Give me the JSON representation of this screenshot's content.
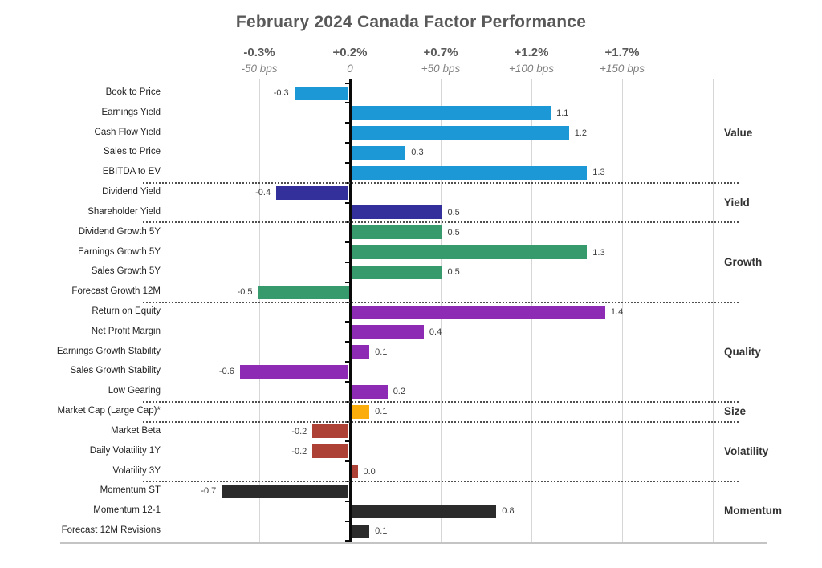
{
  "title": "February 2024 Canada Factor Performance",
  "chart_data": {
    "type": "bar",
    "orientation": "horizontal",
    "title": "February 2024 Canada Factor Performance",
    "value_range": [
      -1.0,
      2.0
    ],
    "grid": true,
    "axis_ticks": [
      {
        "value": -0.5,
        "pct_label": "-0.3%",
        "bps_label": "-50 bps"
      },
      {
        "value": 0.0,
        "pct_label": "+0.2%",
        "bps_label": "0"
      },
      {
        "value": 0.5,
        "pct_label": "+0.7%",
        "bps_label": "+50 bps"
      },
      {
        "value": 1.0,
        "pct_label": "+1.2%",
        "bps_label": "+100 bps"
      },
      {
        "value": 1.5,
        "pct_label": "+1.7%",
        "bps_label": "+150 bps"
      }
    ],
    "groups": [
      {
        "name": "Value",
        "color": "#1B98D5",
        "factors": [
          {
            "label": "Book to Price",
            "value": -0.3
          },
          {
            "label": "Earnings Yield",
            "value": 1.1
          },
          {
            "label": "Cash Flow Yield",
            "value": 1.2
          },
          {
            "label": "Sales to Price",
            "value": 0.3
          },
          {
            "label": "EBITDA to EV",
            "value": 1.3
          }
        ]
      },
      {
        "name": "Yield",
        "color": "#34309B",
        "factors": [
          {
            "label": "Dividend Yield",
            "value": -0.4
          },
          {
            "label": "Shareholder Yield",
            "value": 0.5
          }
        ]
      },
      {
        "name": "Growth",
        "color": "#379A6C",
        "factors": [
          {
            "label": "Dividend Growth 5Y",
            "value": 0.5
          },
          {
            "label": "Earnings Growth 5Y",
            "value": 1.3
          },
          {
            "label": "Sales Growth 5Y",
            "value": 0.5
          },
          {
            "label": "Forecast Growth 12M",
            "value": -0.5
          }
        ]
      },
      {
        "name": "Quality",
        "color": "#8E2BB4",
        "factors": [
          {
            "label": "Return on Equity",
            "value": 1.4
          },
          {
            "label": "Net Profit Margin",
            "value": 0.4
          },
          {
            "label": "Earnings Growth Stability",
            "value": 0.1
          },
          {
            "label": "Sales Growth Stability",
            "value": -0.6
          },
          {
            "label": "Low Gearing",
            "value": 0.2
          }
        ]
      },
      {
        "name": "Size",
        "color": "#FBAD0C",
        "factors": [
          {
            "label": "Market Cap (Large Cap)*",
            "value": 0.1
          }
        ]
      },
      {
        "name": "Volatility",
        "color": "#AE4136",
        "factors": [
          {
            "label": "Market Beta",
            "value": -0.2
          },
          {
            "label": "Daily Volatility 1Y",
            "value": -0.2
          },
          {
            "label": "Volatility 3Y",
            "value": 0.0
          }
        ]
      },
      {
        "name": "Momentum",
        "color": "#2B2B2B",
        "factors": [
          {
            "label": "Momentum ST",
            "value": -0.7
          },
          {
            "label": "Momentum 12-1",
            "value": 0.8
          },
          {
            "label": "Forecast 12M Revisions",
            "value": 0.1
          }
        ]
      }
    ]
  }
}
